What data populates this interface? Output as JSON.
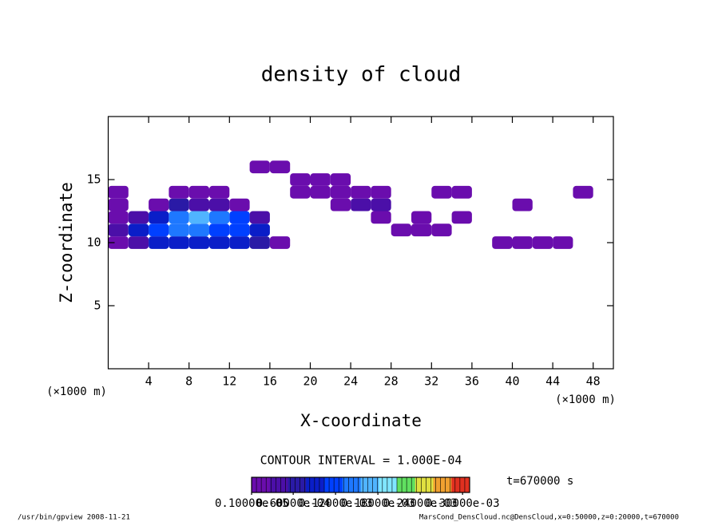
{
  "chart_data": {
    "type": "heatmap",
    "title": "density of cloud",
    "x_label": "X-coordinate",
    "y_label": "Z-coordinate",
    "x_unit": "(×1000 m)",
    "y_unit": "(×1000 m)",
    "contour_note": "CONTOUR INTERVAL = 1.000E-04",
    "time_note": "t=670000 s",
    "footer_left": "/usr/bin/gpview   2008-11-21",
    "footer_right": "MarsCond_DensCloud.nc@DensCloud,x=0:50000,z=0:20000,t=670000",
    "xlim": [
      0,
      50
    ],
    "ylim": [
      0,
      20
    ],
    "xticks": [
      4,
      8,
      12,
      16,
      20,
      24,
      28,
      32,
      36,
      40,
      44,
      48
    ],
    "yticks": [
      5,
      10,
      15
    ],
    "x": [
      1,
      3,
      5,
      7,
      9,
      11,
      13,
      15,
      17,
      19,
      21,
      23,
      25,
      27,
      29,
      31,
      33,
      35,
      37,
      39,
      41,
      43,
      45,
      47,
      49
    ],
    "z": [
      10,
      11,
      12,
      13,
      14,
      15,
      16
    ],
    "values": [
      [
        2e-05,
        5e-05,
        8e-05,
        8e-05,
        8e-05,
        8e-05,
        8e-05,
        6e-05,
        1e-05,
        null,
        null,
        null,
        null,
        null,
        null,
        null,
        null,
        null,
        null,
        1e-05,
        2e-05,
        2e-05,
        1e-05,
        null,
        null
      ],
      [
        3e-05,
        9e-05,
        0.00012,
        0.00013,
        0.00013,
        0.00012,
        0.00011,
        8e-05,
        null,
        null,
        null,
        null,
        null,
        null,
        2e-05,
        1e-05,
        1e-05,
        null,
        null,
        null,
        null,
        null,
        null,
        null,
        null
      ],
      [
        2e-05,
        3e-05,
        0.0001,
        0.00015,
        0.00016,
        0.00015,
        0.00012,
        5e-05,
        null,
        null,
        null,
        null,
        null,
        2e-05,
        null,
        1e-05,
        null,
        1e-05,
        null,
        null,
        null,
        null,
        null,
        null,
        null
      ],
      [
        1e-05,
        null,
        2e-05,
        6e-05,
        5e-05,
        4e-05,
        2e-05,
        null,
        null,
        null,
        null,
        1e-05,
        3e-05,
        3e-05,
        null,
        null,
        null,
        null,
        null,
        null,
        1e-05,
        null,
        null,
        null,
        null
      ],
      [
        1e-05,
        null,
        null,
        1e-05,
        1e-05,
        1e-05,
        null,
        null,
        null,
        1e-05,
        1e-05,
        1e-05,
        2e-05,
        2e-05,
        null,
        null,
        1e-05,
        1e-05,
        null,
        null,
        null,
        null,
        null,
        1e-05,
        null
      ],
      [
        null,
        null,
        null,
        null,
        null,
        null,
        null,
        null,
        null,
        1e-05,
        1e-05,
        1e-05,
        null,
        null,
        null,
        null,
        null,
        null,
        null,
        null,
        null,
        null,
        null,
        null,
        null
      ],
      [
        null,
        null,
        null,
        null,
        null,
        null,
        null,
        1e-05,
        1e-05,
        null,
        null,
        null,
        null,
        null,
        null,
        null,
        null,
        null,
        null,
        null,
        null,
        null,
        null,
        null,
        null
      ]
    ],
    "clim": [
      1e-06,
      0.00031
    ],
    "colormap": [
      "#6a0dad",
      "#4b0fa8",
      "#2a1aa6",
      "#0a1ec8",
      "#0040ff",
      "#1e78ff",
      "#50b4ff",
      "#80e6ff",
      "#60e060",
      "#e0e040",
      "#f0a030",
      "#e03020"
    ],
    "cbar_ticks": [
      {
        "value": 1e-06,
        "label": "0.10000e-05"
      },
      {
        "value": 6e-05,
        "label": "0.60000e-04"
      },
      {
        "value": 0.00012,
        "label": "0.12000e-03"
      },
      {
        "value": 0.00018,
        "label": "0.18000e-03"
      },
      {
        "value": 0.00024,
        "label": "0.24000e-03"
      },
      {
        "value": 0.0003,
        "label": "0.30000e-03"
      }
    ]
  }
}
